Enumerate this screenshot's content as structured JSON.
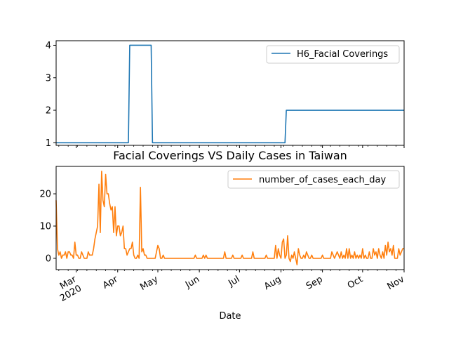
{
  "figure": {
    "xlabel": "Date"
  },
  "chart_data": [
    {
      "type": "line",
      "title": "",
      "xlabel": "",
      "ylabel": "",
      "x_type": "date",
      "xlim": [
        "2020-02-15",
        "2020-11-01"
      ],
      "ylim": [
        0.92,
        4.14
      ],
      "yticks": [
        1,
        2,
        3,
        4
      ],
      "ytick_labels": [
        "1",
        "2",
        "3",
        "4"
      ],
      "grid": false,
      "legend_placement": "upper right",
      "series": [
        {
          "name": "H6_Facial Coverings",
          "color": "#1f77b4",
          "points": [
            [
              "2020-02-15",
              1
            ],
            [
              "2020-04-09",
              1
            ],
            [
              "2020-04-10",
              4
            ],
            [
              "2020-04-26",
              4
            ],
            [
              "2020-04-27",
              1
            ],
            [
              "2020-08-04",
              1
            ],
            [
              "2020-08-05",
              2
            ],
            [
              "2020-11-01",
              2
            ]
          ]
        }
      ]
    },
    {
      "type": "line",
      "title": "Facial Coverings VS Daily Cases in Taiwan",
      "xlabel": "Date",
      "ylabel": "",
      "x_type": "date",
      "xlim": [
        "2020-02-15",
        "2020-11-01"
      ],
      "ylim": [
        -3.5,
        28.5
      ],
      "yticks": [
        0,
        10,
        20
      ],
      "ytick_labels": [
        "0",
        "10",
        "20"
      ],
      "xtick_dates": [
        "2020-03-01",
        "2020-04-01",
        "2020-05-01",
        "2020-06-01",
        "2020-07-01",
        "2020-08-01",
        "2020-09-01",
        "2020-10-01",
        "2020-11-01"
      ],
      "xtick_labels": [
        "Mar\n2020",
        "Apr",
        "May",
        "Jun",
        "Jul",
        "Aug",
        "Sep",
        "Oct",
        "Nov"
      ],
      "grid": false,
      "legend_placement": "upper right",
      "series": [
        {
          "name": "number_of_cases_each_day",
          "color": "#ff7f0e",
          "points": [
            [
              "2020-02-15",
              18
            ],
            [
              "2020-02-16",
              3
            ],
            [
              "2020-02-17",
              1
            ],
            [
              "2020-02-18",
              2
            ],
            [
              "2020-02-19",
              0
            ],
            [
              "2020-02-20",
              1
            ],
            [
              "2020-02-21",
              1
            ],
            [
              "2020-02-22",
              2
            ],
            [
              "2020-02-23",
              0
            ],
            [
              "2020-02-24",
              2
            ],
            [
              "2020-02-25",
              2
            ],
            [
              "2020-02-26",
              1
            ],
            [
              "2020-02-27",
              1
            ],
            [
              "2020-02-28",
              0
            ],
            [
              "2020-02-29",
              5
            ],
            [
              "2020-03-01",
              1
            ],
            [
              "2020-03-02",
              1
            ],
            [
              "2020-03-03",
              0
            ],
            [
              "2020-03-04",
              0
            ],
            [
              "2020-03-05",
              2
            ],
            [
              "2020-03-06",
              1
            ],
            [
              "2020-03-07",
              0
            ],
            [
              "2020-03-08",
              0
            ],
            [
              "2020-03-09",
              0
            ],
            [
              "2020-03-10",
              2
            ],
            [
              "2020-03-11",
              1
            ],
            [
              "2020-03-12",
              1
            ],
            [
              "2020-03-13",
              1
            ],
            [
              "2020-03-14",
              3
            ],
            [
              "2020-03-15",
              6
            ],
            [
              "2020-03-16",
              8
            ],
            [
              "2020-03-17",
              10
            ],
            [
              "2020-03-18",
              23
            ],
            [
              "2020-03-19",
              8
            ],
            [
              "2020-03-20",
              27
            ],
            [
              "2020-03-21",
              18
            ],
            [
              "2020-03-22",
              16
            ],
            [
              "2020-03-23",
              26
            ],
            [
              "2020-03-24",
              20
            ],
            [
              "2020-03-25",
              20
            ],
            [
              "2020-03-26",
              17
            ],
            [
              "2020-03-27",
              15
            ],
            [
              "2020-03-28",
              16
            ],
            [
              "2020-03-29",
              8
            ],
            [
              "2020-03-30",
              16
            ],
            [
              "2020-03-31",
              7
            ],
            [
              "2020-04-01",
              10
            ],
            [
              "2020-04-02",
              10
            ],
            [
              "2020-04-03",
              7
            ],
            [
              "2020-04-04",
              8
            ],
            [
              "2020-04-05",
              10
            ],
            [
              "2020-04-06",
              3
            ],
            [
              "2020-04-07",
              3
            ],
            [
              "2020-04-08",
              1
            ],
            [
              "2020-04-09",
              2
            ],
            [
              "2020-04-10",
              3
            ],
            [
              "2020-04-11",
              3
            ],
            [
              "2020-04-12",
              5
            ],
            [
              "2020-04-13",
              1
            ],
            [
              "2020-04-14",
              0
            ],
            [
              "2020-04-15",
              0
            ],
            [
              "2020-04-16",
              1
            ],
            [
              "2020-04-17",
              0
            ],
            [
              "2020-04-18",
              22
            ],
            [
              "2020-04-19",
              2
            ],
            [
              "2020-04-20",
              3
            ],
            [
              "2020-04-21",
              1
            ],
            [
              "2020-04-22",
              1
            ],
            [
              "2020-04-23",
              0
            ],
            [
              "2020-04-24",
              0
            ],
            [
              "2020-04-25",
              0
            ],
            [
              "2020-04-26",
              0
            ],
            [
              "2020-04-27",
              0
            ],
            [
              "2020-04-28",
              0
            ],
            [
              "2020-04-29",
              0
            ],
            [
              "2020-04-30",
              2
            ],
            [
              "2020-05-01",
              4
            ],
            [
              "2020-05-02",
              3
            ],
            [
              "2020-05-03",
              0
            ],
            [
              "2020-05-04",
              0
            ],
            [
              "2020-05-05",
              1
            ],
            [
              "2020-05-06",
              0
            ],
            [
              "2020-05-07",
              0
            ],
            [
              "2020-05-08",
              0
            ],
            [
              "2020-05-15",
              0
            ],
            [
              "2020-05-22",
              0
            ],
            [
              "2020-05-28",
              0
            ],
            [
              "2020-05-29",
              1
            ],
            [
              "2020-05-30",
              0
            ],
            [
              "2020-06-03",
              0
            ],
            [
              "2020-06-04",
              1
            ],
            [
              "2020-06-05",
              0
            ],
            [
              "2020-06-06",
              1
            ],
            [
              "2020-06-07",
              0
            ],
            [
              "2020-06-15",
              0
            ],
            [
              "2020-06-19",
              0
            ],
            [
              "2020-06-20",
              2
            ],
            [
              "2020-06-21",
              0
            ],
            [
              "2020-06-25",
              0
            ],
            [
              "2020-06-26",
              1
            ],
            [
              "2020-06-27",
              0
            ],
            [
              "2020-07-02",
              0
            ],
            [
              "2020-07-03",
              1
            ],
            [
              "2020-07-04",
              0
            ],
            [
              "2020-07-10",
              0
            ],
            [
              "2020-07-11",
              2
            ],
            [
              "2020-07-12",
              0
            ],
            [
              "2020-07-20",
              0
            ],
            [
              "2020-07-21",
              1
            ],
            [
              "2020-07-22",
              0
            ],
            [
              "2020-07-27",
              0
            ],
            [
              "2020-07-28",
              4
            ],
            [
              "2020-07-29",
              0
            ],
            [
              "2020-07-30",
              3
            ],
            [
              "2020-07-31",
              1
            ],
            [
              "2020-08-01",
              0
            ],
            [
              "2020-08-02",
              5
            ],
            [
              "2020-08-03",
              6
            ],
            [
              "2020-08-04",
              0
            ],
            [
              "2020-08-05",
              1
            ],
            [
              "2020-08-06",
              7
            ],
            [
              "2020-08-07",
              0
            ],
            [
              "2020-08-08",
              -1
            ],
            [
              "2020-08-09",
              1
            ],
            [
              "2020-08-10",
              0
            ],
            [
              "2020-08-11",
              2
            ],
            [
              "2020-08-12",
              0
            ],
            [
              "2020-08-13",
              -2
            ],
            [
              "2020-08-14",
              3
            ],
            [
              "2020-08-15",
              1
            ],
            [
              "2020-08-16",
              0
            ],
            [
              "2020-08-17",
              0
            ],
            [
              "2020-08-18",
              1
            ],
            [
              "2020-08-19",
              0
            ],
            [
              "2020-08-20",
              2
            ],
            [
              "2020-08-21",
              1
            ],
            [
              "2020-08-22",
              0
            ],
            [
              "2020-08-23",
              0
            ],
            [
              "2020-08-24",
              1
            ],
            [
              "2020-08-25",
              0
            ],
            [
              "2020-08-31",
              0
            ],
            [
              "2020-09-01",
              1
            ],
            [
              "2020-09-02",
              0
            ],
            [
              "2020-09-07",
              0
            ],
            [
              "2020-09-08",
              2
            ],
            [
              "2020-09-09",
              1
            ],
            [
              "2020-09-10",
              0
            ],
            [
              "2020-09-11",
              1
            ],
            [
              "2020-09-12",
              2
            ],
            [
              "2020-09-13",
              1
            ],
            [
              "2020-09-14",
              0
            ],
            [
              "2020-09-15",
              2
            ],
            [
              "2020-09-16",
              0
            ],
            [
              "2020-09-17",
              1
            ],
            [
              "2020-09-18",
              0
            ],
            [
              "2020-09-19",
              3
            ],
            [
              "2020-09-20",
              0
            ],
            [
              "2020-09-21",
              3
            ],
            [
              "2020-09-22",
              0
            ],
            [
              "2020-09-23",
              1
            ],
            [
              "2020-09-24",
              0
            ],
            [
              "2020-09-25",
              2
            ],
            [
              "2020-09-26",
              0
            ],
            [
              "2020-09-27",
              1
            ],
            [
              "2020-09-28",
              0
            ],
            [
              "2020-09-29",
              1
            ],
            [
              "2020-09-30",
              0
            ],
            [
              "2020-10-01",
              3
            ],
            [
              "2020-10-02",
              0
            ],
            [
              "2020-10-03",
              1
            ],
            [
              "2020-10-04",
              0
            ],
            [
              "2020-10-05",
              0
            ],
            [
              "2020-10-06",
              2
            ],
            [
              "2020-10-07",
              0
            ],
            [
              "2020-10-08",
              0
            ],
            [
              "2020-10-09",
              3
            ],
            [
              "2020-10-10",
              1
            ],
            [
              "2020-10-11",
              2
            ],
            [
              "2020-10-12",
              0
            ],
            [
              "2020-10-13",
              3
            ],
            [
              "2020-10-14",
              1
            ],
            [
              "2020-10-15",
              0
            ],
            [
              "2020-10-16",
              2
            ],
            [
              "2020-10-17",
              0
            ],
            [
              "2020-10-18",
              4
            ],
            [
              "2020-10-19",
              1
            ],
            [
              "2020-10-20",
              5
            ],
            [
              "2020-10-21",
              2
            ],
            [
              "2020-10-22",
              3
            ],
            [
              "2020-10-23",
              1
            ],
            [
              "2020-10-24",
              4
            ],
            [
              "2020-10-25",
              0
            ],
            [
              "2020-10-26",
              0
            ],
            [
              "2020-10-27",
              0
            ],
            [
              "2020-10-28",
              3
            ],
            [
              "2020-10-29",
              1
            ],
            [
              "2020-10-30",
              2
            ],
            [
              "2020-10-31",
              3
            ],
            [
              "2020-11-01",
              3
            ]
          ]
        }
      ]
    }
  ]
}
